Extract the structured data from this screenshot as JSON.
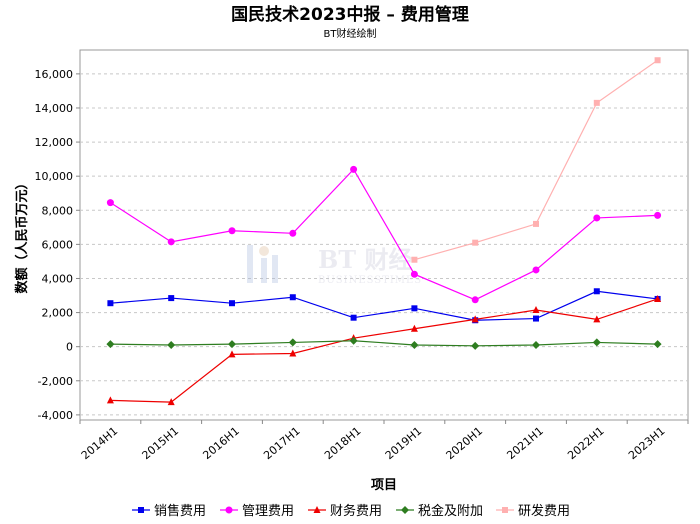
{
  "chart_data": {
    "type": "line",
    "title": "国民技术2023中报 – 费用管理",
    "subtitle": "BT财经绘制",
    "xlabel": "项目",
    "ylabel": "数额（人民币万元）",
    "ylim": [
      -4300,
      17400
    ],
    "yticks": [
      -4000,
      -2000,
      0,
      2000,
      4000,
      6000,
      8000,
      10000,
      12000,
      14000,
      16000
    ],
    "ytick_labels": [
      "-4,000",
      "-2,000",
      "0",
      "2,000",
      "4,000",
      "6,000",
      "8,000",
      "10,000",
      "12,000",
      "14,000",
      "16,000"
    ],
    "grid": true,
    "legend_position": "bottom",
    "categories": [
      "2014H1",
      "2015H1",
      "2016H1",
      "2017H1",
      "2018H1",
      "2019H1",
      "2020H1",
      "2021H1",
      "2022H1",
      "2023H1"
    ],
    "watermark": {
      "line1": "BT 财经",
      "line2": "BUSINESSTIMES"
    },
    "series": [
      {
        "name": "销售费用",
        "color": "#0000ee",
        "marker": "square",
        "values": [
          2550,
          2850,
          2550,
          2900,
          1700,
          2250,
          1550,
          1650,
          3250,
          2800
        ]
      },
      {
        "name": "管理费用",
        "color": "#ff00ff",
        "marker": "circle",
        "values": [
          8450,
          6150,
          6800,
          6650,
          10400,
          4250,
          2750,
          4500,
          7550,
          7700
        ]
      },
      {
        "name": "财务费用",
        "color": "#ee0000",
        "marker": "triangle",
        "values": [
          -3150,
          -3250,
          -450,
          -400,
          500,
          1050,
          1600,
          2150,
          1600,
          2800
        ]
      },
      {
        "name": "税金及附加",
        "color": "#2e7d20",
        "marker": "diamond",
        "values": [
          150,
          100,
          150,
          250,
          350,
          100,
          50,
          100,
          250,
          150
        ]
      },
      {
        "name": "研发费用",
        "color": "#ffb0b0",
        "marker": "square",
        "values": [
          null,
          null,
          null,
          null,
          null,
          5100,
          6100,
          7200,
          14300,
          16800
        ]
      }
    ]
  }
}
